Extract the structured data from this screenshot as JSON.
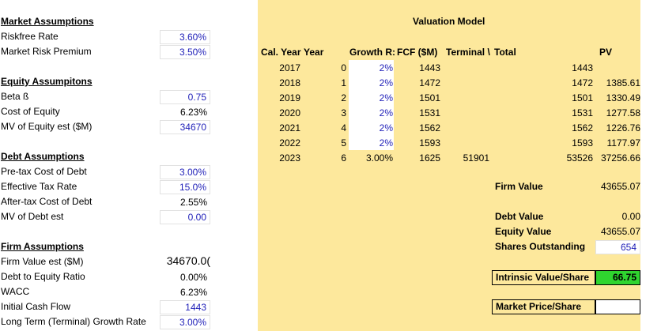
{
  "colors": {
    "panel": "#fde89c",
    "blue_input": "#1f1fb8",
    "green": "#2fd52f"
  },
  "market": {
    "title": "Market Assumptions",
    "riskfree_label": "Riskfree Rate",
    "riskfree": "3.60%",
    "mrp_label": "Market Risk Premium",
    "mrp": "3.50%"
  },
  "equity": {
    "title": "Equity Assumpitons",
    "beta_label": "Beta ß",
    "beta": "0.75",
    "coe_label": "Cost of Equity",
    "coe": "6.23%",
    "mv_label": "MV of Equity est ($M)",
    "mv": "34670"
  },
  "debt": {
    "title": "Debt Assumptions",
    "pretax_label": "Pre-tax Cost of Debt",
    "pretax": "3.00%",
    "tax_label": "Effective Tax Rate",
    "tax": "15.0%",
    "aftertax_label": "After-tax Cost of Debt",
    "aftertax": "2.55%",
    "mv_label": "MV of Debt est",
    "mv": "0.00"
  },
  "firm": {
    "title": "Firm Assumptions",
    "fv_label": "Firm Value est ($M)",
    "fv": "34670.0(",
    "de_label": "Debt to Equity Ratio",
    "de": "0.00%",
    "wacc_label": "WACC",
    "wacc": "6.23%",
    "icf_label": "Initial Cash Flow",
    "icf": "1443",
    "ltg_label": "Long Term (Terminal) Growth Rate",
    "ltg": "3.00%"
  },
  "valuation": {
    "title": "Valuation Model",
    "headers": {
      "year": "Cal. Year",
      "idx": "Year",
      "growth": "Growth R:",
      "fcf": "FCF ($M)",
      "terminal": "Terminal \\",
      "total": "Total",
      "pv": "PV"
    },
    "rows": [
      {
        "year": "2017",
        "idx": "0",
        "growth": "2%",
        "fcf": "1443",
        "terminal": "",
        "total": "1443",
        "pv": ""
      },
      {
        "year": "2018",
        "idx": "1",
        "growth": "2%",
        "fcf": "1472",
        "terminal": "",
        "total": "1472",
        "pv": "1385.61"
      },
      {
        "year": "2019",
        "idx": "2",
        "growth": "2%",
        "fcf": "1501",
        "terminal": "",
        "total": "1501",
        "pv": "1330.49"
      },
      {
        "year": "2020",
        "idx": "3",
        "growth": "2%",
        "fcf": "1531",
        "terminal": "",
        "total": "1531",
        "pv": "1277.58"
      },
      {
        "year": "2021",
        "idx": "4",
        "growth": "2%",
        "fcf": "1562",
        "terminal": "",
        "total": "1562",
        "pv": "1226.76"
      },
      {
        "year": "2022",
        "idx": "5",
        "growth": "2%",
        "fcf": "1593",
        "terminal": "",
        "total": "1593",
        "pv": "1177.97"
      },
      {
        "year": "2023",
        "idx": "6",
        "growth": "3.00%",
        "fcf": "1625",
        "terminal": "51901",
        "total": "53526",
        "pv": "37256.66"
      }
    ],
    "firm_value_label": "Firm Value",
    "firm_value": "43655.07",
    "debt_value_label": "Debt Value",
    "debt_value": "0.00",
    "equity_value_label": "Equity Value",
    "equity_value": "43655.07",
    "shares_label": "Shares Outstanding",
    "shares": "654",
    "intrinsic_label": "Intrinsic Value/Share",
    "intrinsic": "66.75",
    "market_price_label": "Market Price/Share",
    "market_price": ""
  }
}
